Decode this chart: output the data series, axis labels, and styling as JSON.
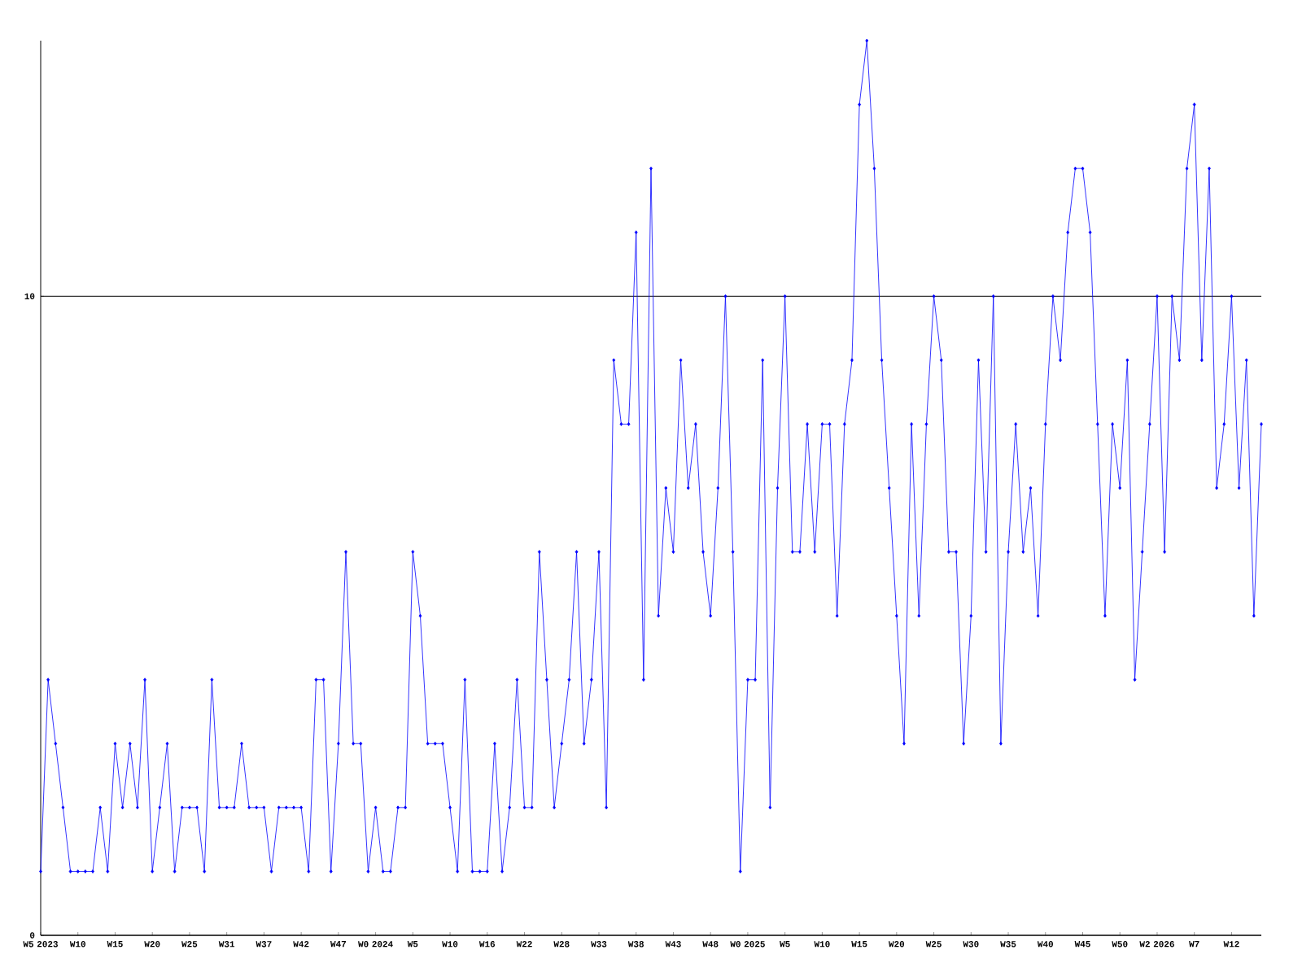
{
  "chart_data": {
    "type": "line",
    "color": "#0000ff",
    "marker": "diamond",
    "grid": "y",
    "categories": [
      "W5 2023",
      null,
      null,
      null,
      null,
      "W10",
      null,
      null,
      null,
      null,
      "W15",
      null,
      null,
      null,
      null,
      "W20",
      null,
      null,
      null,
      null,
      "W25",
      null,
      null,
      null,
      null,
      "W31",
      null,
      null,
      null,
      null,
      "W37",
      null,
      null,
      null,
      null,
      "W42",
      null,
      null,
      null,
      null,
      "W47",
      null,
      null,
      null,
      null,
      "W0 2024",
      null,
      null,
      null,
      null,
      "W5",
      null,
      null,
      null,
      null,
      "W10",
      null,
      null,
      null,
      null,
      "W16",
      null,
      null,
      null,
      null,
      "W22",
      null,
      null,
      null,
      null,
      "W28",
      null,
      null,
      null,
      null,
      "W33",
      null,
      null,
      null,
      null,
      "W38",
      null,
      null,
      null,
      null,
      "W43",
      null,
      null,
      null,
      null,
      "W48",
      null,
      null,
      null,
      null,
      "W0 2025",
      null,
      null,
      null,
      null,
      "W5",
      null,
      null,
      null,
      null,
      "W10",
      null,
      null,
      null,
      null,
      "W15",
      null,
      null,
      null,
      null,
      "W20",
      null,
      null,
      null,
      null,
      "W25",
      null,
      null,
      null,
      null,
      "W30",
      null,
      null,
      null,
      null,
      "W35",
      null,
      null,
      null,
      null,
      "W40",
      null,
      null,
      null,
      null,
      "W45",
      null,
      null,
      null,
      null,
      "W50",
      null,
      null,
      null,
      null,
      "W2 2026",
      null,
      null,
      null,
      null,
      "W7",
      null,
      null,
      null,
      null,
      "W12",
      null,
      null,
      null,
      null
    ],
    "values": [
      1,
      4,
      3,
      2,
      1,
      1,
      1,
      1,
      2,
      1,
      3,
      2,
      3,
      2,
      4,
      1,
      2,
      3,
      1,
      2,
      2,
      2,
      1,
      4,
      2,
      2,
      2,
      3,
      2,
      2,
      2,
      1,
      2,
      2,
      2,
      2,
      1,
      4,
      4,
      1,
      3,
      6,
      3,
      3,
      1,
      2,
      1,
      1,
      2,
      2,
      6,
      5,
      3,
      3,
      3,
      2,
      1,
      4,
      1,
      1,
      1,
      3,
      1,
      2,
      4,
      2,
      2,
      6,
      4,
      2,
      3,
      4,
      6,
      3,
      4,
      6,
      2,
      9,
      8,
      8,
      11,
      4,
      12,
      5,
      7,
      6,
      9,
      7,
      8,
      6,
      5,
      7,
      10,
      6,
      1,
      4,
      4,
      9,
      2,
      7,
      10,
      6,
      6,
      8,
      6,
      8,
      8,
      5,
      8,
      9,
      13,
      14,
      12,
      9,
      7,
      5,
      3,
      8,
      5,
      8,
      10,
      9,
      6,
      6,
      3,
      5,
      9,
      6,
      10,
      3,
      6,
      8,
      6,
      7,
      5,
      8,
      10,
      9,
      11,
      12,
      12,
      11,
      8,
      5,
      8,
      7,
      9,
      4,
      6,
      8,
      10,
      6,
      10,
      9,
      12,
      13,
      9,
      12,
      7,
      8,
      10,
      7,
      9,
      5,
      8
    ],
    "ylim": [
      0,
      14
    ],
    "yticks": [
      0,
      10
    ]
  }
}
